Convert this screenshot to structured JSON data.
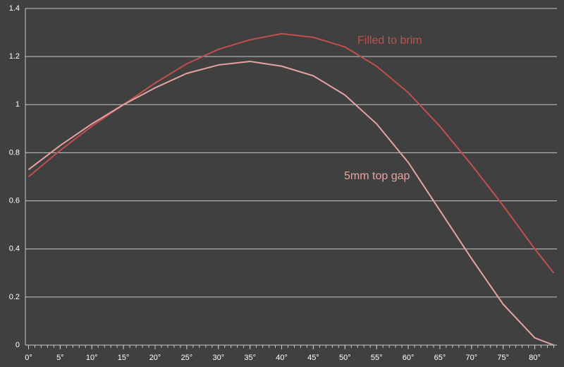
{
  "chart_data": {
    "type": "line",
    "x": [
      0,
      5,
      10,
      15,
      20,
      25,
      30,
      35,
      40,
      45,
      50,
      55,
      60,
      65,
      70,
      75,
      80,
      83
    ],
    "series": [
      {
        "name": "Filled to brim",
        "color": "#c0504d",
        "values": [
          0.7,
          0.81,
          0.91,
          1.0,
          1.09,
          1.17,
          1.23,
          1.27,
          1.295,
          1.28,
          1.24,
          1.16,
          1.05,
          0.91,
          0.75,
          0.58,
          0.4,
          0.3
        ]
      },
      {
        "name": "5mm top gap",
        "color": "#e6a3a3",
        "values": [
          0.73,
          0.83,
          0.92,
          1.0,
          1.07,
          1.13,
          1.165,
          1.18,
          1.16,
          1.12,
          1.04,
          0.92,
          0.76,
          0.56,
          0.36,
          0.17,
          0.03,
          0
        ]
      }
    ],
    "xlim": [
      -0.5,
      83.5
    ],
    "xticks": [
      {
        "value": 0,
        "label": "0°"
      },
      {
        "value": 5,
        "label": "5°"
      },
      {
        "value": 10,
        "label": "10°"
      },
      {
        "value": 15,
        "label": "15°"
      },
      {
        "value": 20,
        "label": "20°"
      },
      {
        "value": 25,
        "label": "25°"
      },
      {
        "value": 30,
        "label": "30°"
      },
      {
        "value": 35,
        "label": "35°"
      },
      {
        "value": 40,
        "label": "40°"
      },
      {
        "value": 45,
        "label": "45°"
      },
      {
        "value": 50,
        "label": "50°"
      },
      {
        "value": 55,
        "label": "55°"
      },
      {
        "value": 60,
        "label": "60°"
      },
      {
        "value": 65,
        "label": "65°"
      },
      {
        "value": 70,
        "label": "70°"
      },
      {
        "value": 75,
        "label": "75°"
      },
      {
        "value": 80,
        "label": "80°"
      }
    ],
    "ylim": [
      0,
      1.4
    ],
    "yticks": [
      0,
      0.2,
      0.4,
      0.6,
      0.8,
      1,
      1.2,
      1.4
    ],
    "grid": true
  }
}
